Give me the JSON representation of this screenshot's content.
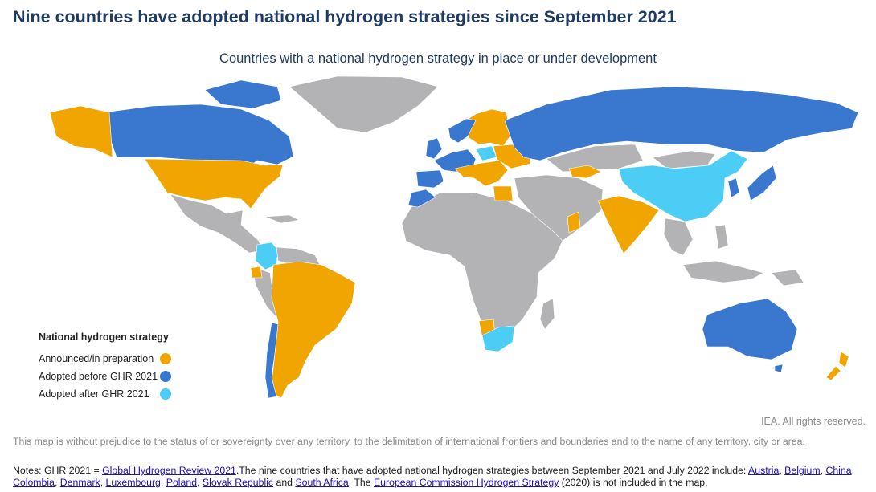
{
  "title": "Nine countries have adopted national hydrogen strategies since September 2021",
  "subtitle": "Countries with a national hydrogen strategy in place or under development",
  "colors": {
    "announced": "#f0a500",
    "adopted_before": "#3a78d0",
    "adopted_after": "#4ccdf6",
    "none": "#b3b3b5"
  },
  "legend": {
    "title": "National hydrogen strategy",
    "items": [
      {
        "label": "Announced/in preparation",
        "color": "#f0a500"
      },
      {
        "label": "Adopted before GHR 2021",
        "color": "#3a78d0"
      },
      {
        "label": "Adopted after GHR 2021",
        "color": "#4ccdf6"
      }
    ]
  },
  "rights": "IEA. All rights reserved.",
  "disclaimer": "This map is without prejudice to the status of or sovereignty over any territory, to the delimitation of international frontiers and boundaries and to the name of any territory, city or area.",
  "notes": {
    "prefix": "Notes: GHR 2021 = ",
    "ghr_link": "Global Hydrogen Review 2021",
    "middle": ".The nine countries that have adopted national hydrogen strategies between September 2021 and July 2022 include: ",
    "countries": [
      "Austria",
      "Belgium",
      "China",
      "Colombia",
      "Denmark",
      "Luxembourg",
      "Poland",
      "Slovak Republic",
      "South Africa"
    ],
    "and_word": " and ",
    "the_word": ". The ",
    "ec_link": "European Commission Hydrogen Strategy",
    "suffix": " (2020) is not included in the map."
  }
}
